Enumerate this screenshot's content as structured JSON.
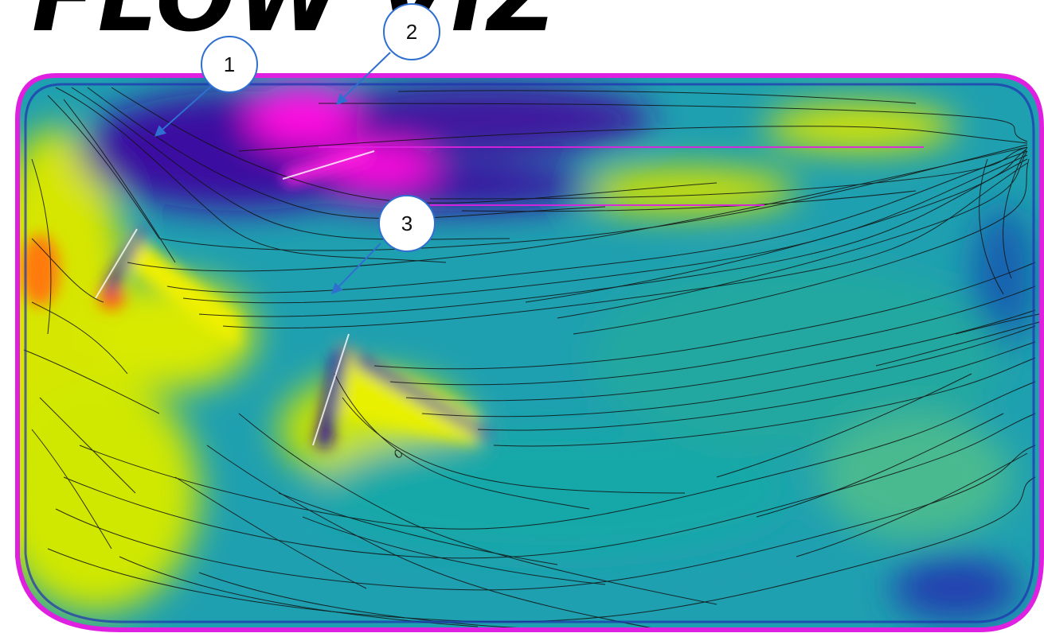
{
  "title": "FLOW VIZ",
  "callouts": [
    {
      "label": "1"
    },
    {
      "label": "2"
    },
    {
      "label": "3"
    }
  ],
  "colors": {
    "outline": "#e020e0",
    "base": "#1fa0b0",
    "low": "#3a10a0",
    "very_low": "#ff10e0",
    "high": "#e8f000",
    "peak": "#ff7a10",
    "streamline": "#111111",
    "callout_border": "#2f6fd0",
    "arrow": "#2f6fd0"
  }
}
